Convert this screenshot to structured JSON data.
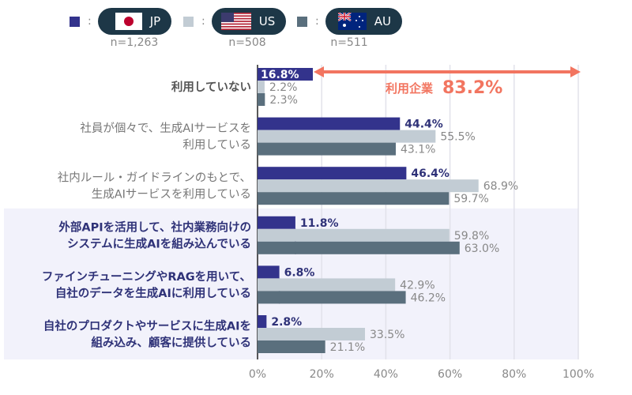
{
  "legend": [
    {
      "code": "JP",
      "n": "n=1,263",
      "color": "#33338c",
      "flag": "japan-flag"
    },
    {
      "code": "US",
      "n": "n=508",
      "color": "#c2ccd4",
      "flag": "usa-flag"
    },
    {
      "code": "AU",
      "n": "n=511",
      "color": "#5a6f7d",
      "flag": "australia-flag"
    }
  ],
  "annotation": {
    "label": "利用企業",
    "value": "83.2%",
    "color": "#f27560"
  },
  "chart_data": {
    "type": "bar",
    "orientation": "horizontal",
    "categories": [
      [
        "利用していない"
      ],
      [
        "社員が個々で、生成AIサービスを",
        "利用している"
      ],
      [
        "社内ルール・ガイドラインのもとで、",
        "生成AIサービスを利用している"
      ],
      [
        "外部APIを活用して、社内業務向けの",
        "システムに生成AIを組み込んでいる"
      ],
      [
        "ファインチューニングやRAGを用いて、",
        "自社のデータを生成AIに利用している"
      ],
      [
        "自社のプロダクトやサービスに生成AIを",
        "組み込み、顧客に提供している"
      ]
    ],
    "series": [
      {
        "name": "JP",
        "values": [
          16.8,
          44.4,
          46.4,
          11.8,
          6.8,
          2.8
        ],
        "labels": [
          "16.8%",
          "44.4%",
          "46.4%",
          "11.8%",
          "6.8%",
          "2.8%"
        ]
      },
      {
        "name": "US",
        "values": [
          2.2,
          55.5,
          68.9,
          59.8,
          42.9,
          33.5
        ],
        "labels": [
          "2.2%",
          "55.5%",
          "68.9%",
          "59.8%",
          "42.9%",
          "33.5%"
        ]
      },
      {
        "name": "AU",
        "values": [
          2.3,
          43.1,
          59.7,
          63.0,
          46.2,
          21.1
        ],
        "labels": [
          "2.3%",
          "43.1%",
          "59.7%",
          "63.0%",
          "46.2%",
          "21.1%"
        ]
      }
    ],
    "xlim": [
      0,
      100
    ],
    "xticks": [
      "0%",
      "20%",
      "40%",
      "60%",
      "80%",
      "100%"
    ],
    "grid": true,
    "highlighted_categories": [
      3,
      4,
      5
    ],
    "legend_position": "top"
  }
}
